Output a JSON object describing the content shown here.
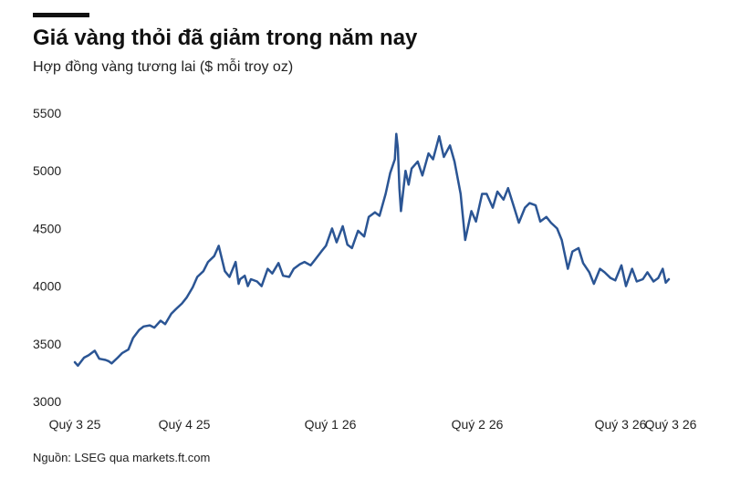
{
  "header": {
    "title": "Giá vàng thỏi đã giảm trong năm nay",
    "subtitle": "Hợp đồng vàng tương lai ($ mỗi troy oz)"
  },
  "footer": {
    "source": "Nguồn: LSEG qua markets.ft.com"
  },
  "colors": {
    "line": "#2b5594",
    "text": "#222222"
  },
  "chart_data": {
    "type": "line",
    "title": "Giá vàng thỏi đã giảm trong năm nay",
    "subtitle": "Hợp đồng vàng tương lai ($ mỗi troy oz)",
    "xlabel": "",
    "ylabel": "",
    "ylim": [
      3000,
      5500
    ],
    "yticks": [
      3000,
      3500,
      4000,
      4500,
      5000,
      5500
    ],
    "grid": false,
    "legend": "none",
    "x_ticks": [
      {
        "label": "Quý 3 25",
        "x": "2025-07-01"
      },
      {
        "label": "Quý 4 25",
        "x": "2025-10-01"
      },
      {
        "label": "Quý 1 26",
        "x": "2026-01-01"
      },
      {
        "label": "Quý 2 26",
        "x": "2026-04-01"
      },
      {
        "label": "Quý 3 26",
        "x": "2026-07-01"
      },
      {
        "label": "Quý 3 26",
        "x": "2026-07-24"
      }
    ],
    "series": [
      {
        "x": [
          "2025-07-01",
          "2025-07-03",
          "2025-07-07",
          "2025-07-10",
          "2025-07-14",
          "2025-07-17",
          "2025-07-21",
          "2025-07-23",
          "2025-07-25",
          "2025-07-29",
          "2025-08-01",
          "2025-08-05",
          "2025-08-08",
          "2025-08-12",
          "2025-08-15",
          "2025-08-19",
          "2025-08-22",
          "2025-08-26",
          "2025-08-29",
          "2025-09-02",
          "2025-09-05",
          "2025-09-09",
          "2025-09-12",
          "2025-09-16",
          "2025-09-19",
          "2025-09-23",
          "2025-09-26",
          "2025-09-30",
          "2025-10-03",
          "2025-10-07",
          "2025-10-10",
          "2025-10-14",
          "2025-10-16",
          "2025-10-17",
          "2025-10-20",
          "2025-10-22",
          "2025-10-24",
          "2025-10-28",
          "2025-10-31",
          "2025-11-04",
          "2025-11-07",
          "2025-11-11",
          "2025-11-14",
          "2025-11-18",
          "2025-11-21",
          "2025-11-25",
          "2025-11-28",
          "2025-12-02",
          "2025-12-05",
          "2025-12-09",
          "2025-12-12",
          "2025-12-16",
          "2025-12-19",
          "2025-12-23",
          "2025-12-26",
          "2025-12-29",
          "2026-01-02",
          "2026-01-06",
          "2026-01-09",
          "2026-01-13",
          "2026-01-16",
          "2026-01-20",
          "2026-01-23",
          "2026-01-26",
          "2026-01-27",
          "2026-01-28",
          "2026-01-29",
          "2026-01-30",
          "2026-02-02",
          "2026-02-04",
          "2026-02-06",
          "2026-02-10",
          "2026-02-13",
          "2026-02-17",
          "2026-02-20",
          "2026-02-24",
          "2026-02-27",
          "2026-03-03",
          "2026-03-06",
          "2026-03-10",
          "2026-03-13",
          "2026-03-17",
          "2026-03-20",
          "2026-03-24",
          "2026-03-27",
          "2026-03-31",
          "2026-04-03",
          "2026-04-07",
          "2026-04-10",
          "2026-04-14",
          "2026-04-17",
          "2026-04-21",
          "2026-04-24",
          "2026-04-28",
          "2026-05-01",
          "2026-05-05",
          "2026-05-08",
          "2026-05-12",
          "2026-05-15",
          "2026-05-19",
          "2026-05-22",
          "2026-05-26",
          "2026-05-29",
          "2026-06-02",
          "2026-06-05",
          "2026-06-09",
          "2026-06-12",
          "2026-06-16",
          "2026-06-19",
          "2026-06-23",
          "2026-06-26",
          "2026-06-30",
          "2026-07-03",
          "2026-07-07",
          "2026-07-10",
          "2026-07-14",
          "2026-07-17",
          "2026-07-20",
          "2026-07-22",
          "2026-07-24"
        ],
        "values": [
          3340,
          3310,
          3380,
          3400,
          3440,
          3370,
          3360,
          3350,
          3330,
          3380,
          3420,
          3450,
          3550,
          3620,
          3650,
          3660,
          3640,
          3700,
          3670,
          3760,
          3800,
          3850,
          3900,
          3990,
          4080,
          4130,
          4210,
          4260,
          4350,
          4130,
          4080,
          4210,
          4020,
          4060,
          4090,
          4000,
          4060,
          4040,
          4000,
          4150,
          4110,
          4200,
          4090,
          4080,
          4150,
          4190,
          4210,
          4180,
          4230,
          4300,
          4350,
          4500,
          4380,
          4520,
          4360,
          4330,
          4480,
          4430,
          4600,
          4640,
          4610,
          4800,
          4980,
          5100,
          5320,
          5200,
          4850,
          4650,
          5000,
          4880,
          5020,
          5080,
          4960,
          5150,
          5100,
          5300,
          5120,
          5220,
          5080,
          4800,
          4400,
          4650,
          4560,
          4800,
          4800,
          4680,
          4820,
          4750,
          4850,
          4680,
          4550,
          4680,
          4720,
          4700,
          4560,
          4600,
          4550,
          4500,
          4400,
          4150,
          4300,
          4330,
          4200,
          4120,
          4020,
          4150,
          4120,
          4070,
          4050,
          4180,
          4000,
          4150,
          4040,
          4060,
          4120,
          4040,
          4070,
          4150,
          4030,
          4060
        ]
      }
    ]
  }
}
